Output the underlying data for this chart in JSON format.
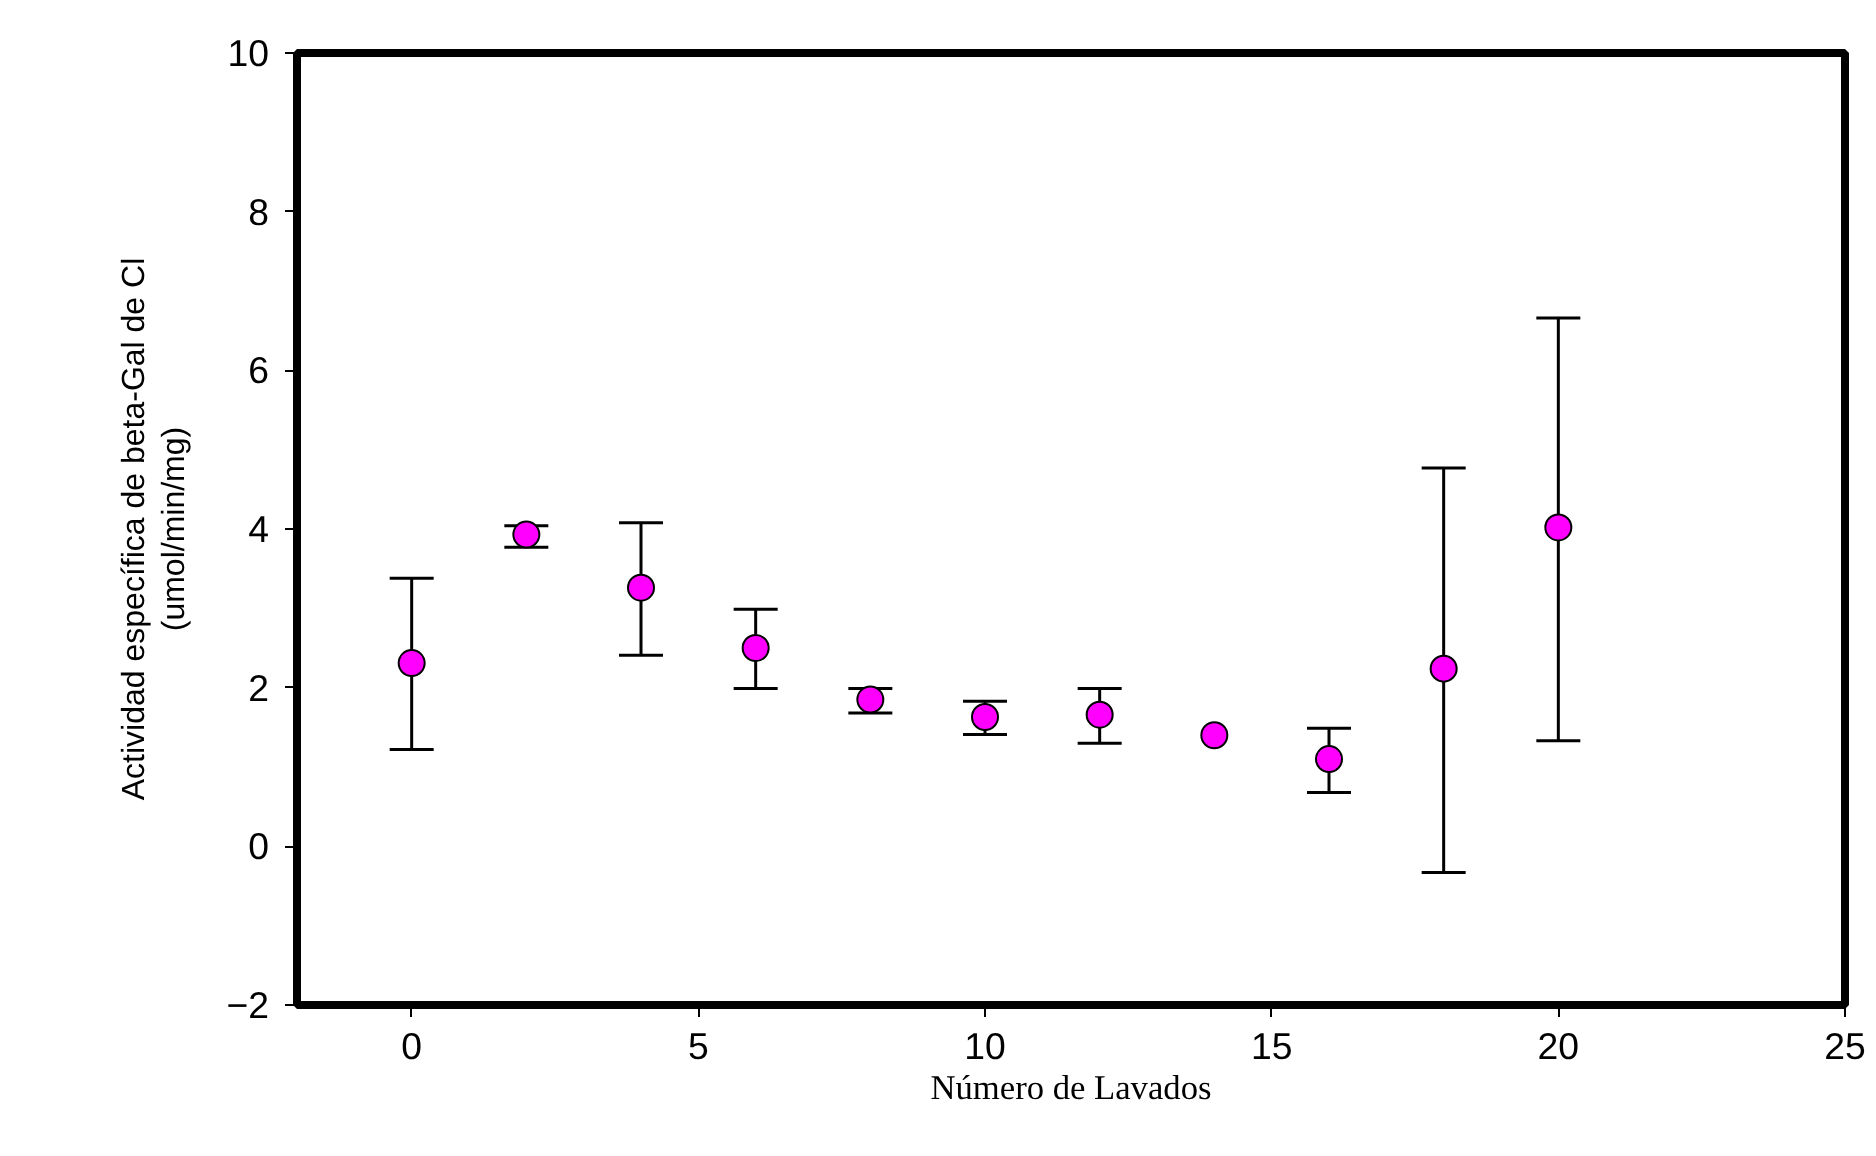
{
  "chart_data": {
    "type": "scatter",
    "xlabel": "Número de Lavados",
    "ylabel": "Actividad específica de beta-Gal de Cl\n(umol/min/mg)",
    "x": [
      0,
      2,
      4,
      6,
      8,
      10,
      12,
      14,
      16,
      18,
      20
    ],
    "series": [
      {
        "color": "#ff00ff",
        "values": [
          2.31,
          3.93,
          3.26,
          2.5,
          1.85,
          1.63,
          1.66,
          1.4,
          1.1,
          2.24,
          4.02
        ],
        "errors": [
          [
            1.22,
            3.38
          ],
          [
            3.77,
            4.04
          ],
          [
            2.41,
            4.08
          ],
          [
            1.99,
            2.99
          ],
          [
            1.68,
            1.99
          ],
          [
            1.41,
            1.83
          ],
          [
            1.3,
            1.99
          ],
          null,
          [
            0.68,
            1.49
          ],
          [
            -0.33,
            4.77
          ],
          [
            1.33,
            6.66
          ]
        ]
      }
    ],
    "xlim": [
      -2,
      25
    ],
    "xticks": [
      0,
      5,
      10,
      15,
      20,
      25
    ],
    "ylim": [
      -2,
      10
    ],
    "yticks": [
      -2,
      0,
      2,
      4,
      6,
      8,
      10
    ],
    "marker": "circle",
    "grid": false
  }
}
